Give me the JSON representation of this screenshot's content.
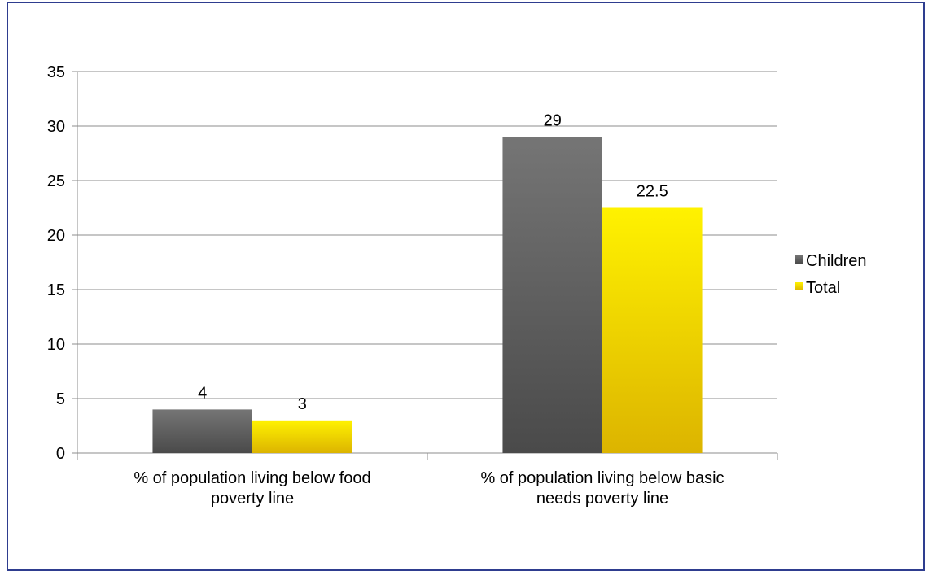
{
  "chart_data": {
    "type": "bar",
    "title": "",
    "xlabel": "",
    "ylabel": "",
    "ylim": [
      0,
      35
    ],
    "yticks": [
      0,
      5,
      10,
      15,
      20,
      25,
      30,
      35
    ],
    "grid": true,
    "legend_position": "right",
    "categories": [
      "% of population living below food poverty line",
      "% of population living below basic needs poverty line"
    ],
    "category_lines": [
      [
        "% of population living below food",
        "poverty line"
      ],
      [
        "% of population living below basic",
        "needs poverty line"
      ]
    ],
    "series": [
      {
        "name": "Children",
        "values": [
          4,
          29
        ],
        "labels": [
          "4",
          "29"
        ],
        "color": "#5f5f5f"
      },
      {
        "name": "Total",
        "values": [
          3,
          22.5
        ],
        "labels": [
          "3",
          "22.5"
        ],
        "color": "#ffee00"
      }
    ]
  },
  "colors": {
    "frame": "#2e3d8f",
    "grid": "#8c8c8c",
    "children_top": "#757575",
    "children_bottom": "#4a4a4a",
    "total_top": "#fff200",
    "total_bottom": "#dcb400"
  }
}
